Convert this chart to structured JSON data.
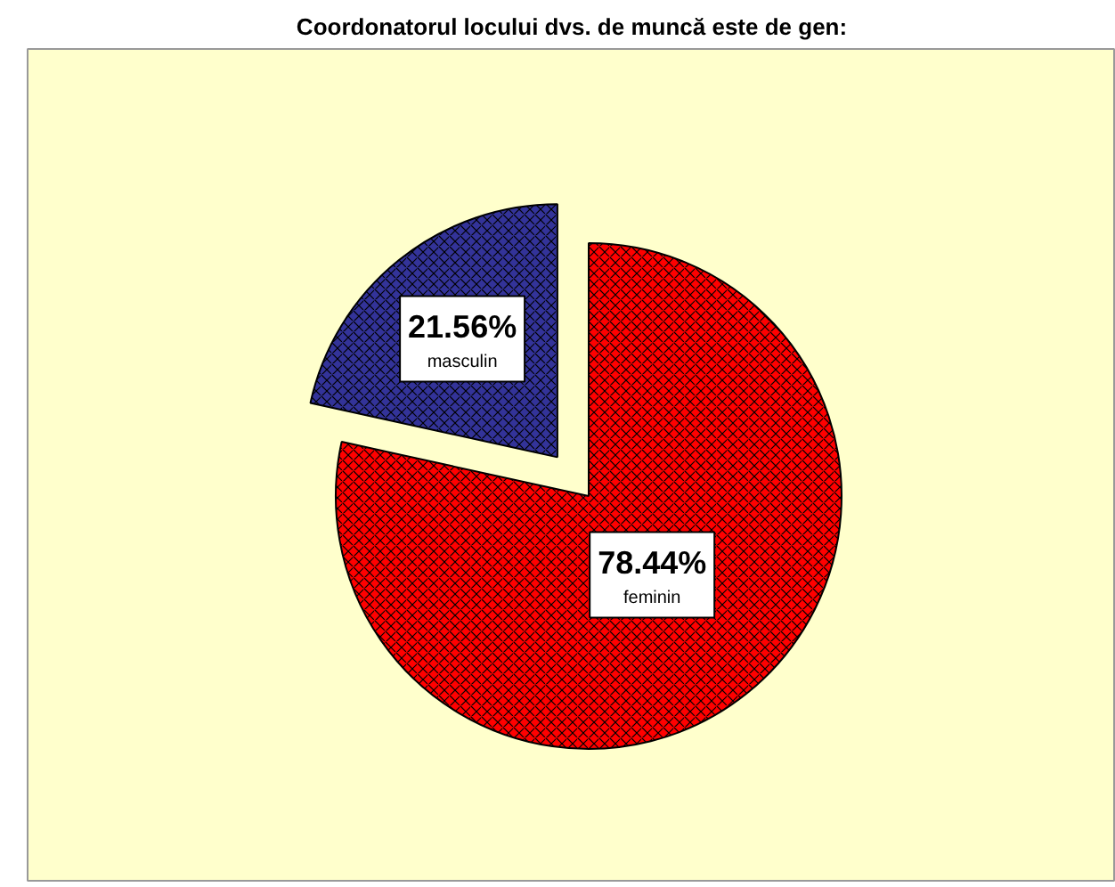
{
  "chart_data": {
    "type": "pie",
    "title": "Coordonatorul locului dvs. de muncă este de gen:",
    "categories": [
      "feminin",
      "masculin"
    ],
    "values": [
      78.44,
      21.56
    ],
    "colors": [
      "#ff0000",
      "#333399"
    ],
    "value_labels": [
      "78.44%",
      "21.56%"
    ]
  }
}
